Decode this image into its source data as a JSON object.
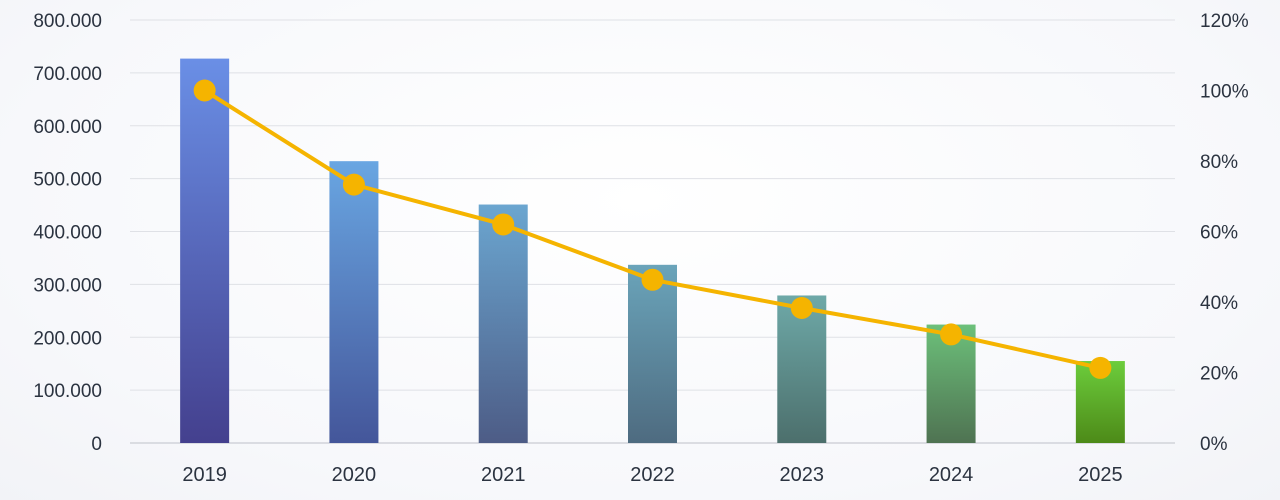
{
  "chart_data": {
    "type": "bar",
    "categories": [
      "2019",
      "2020",
      "2021",
      "2022",
      "2023",
      "2024",
      "2025"
    ],
    "series": [
      {
        "type": "bar",
        "axis": "left",
        "values": [
          727000,
          533000,
          451000,
          337000,
          279000,
          224000,
          155000
        ]
      },
      {
        "type": "line",
        "axis": "right",
        "values": [
          1.0,
          0.733,
          0.62,
          0.463,
          0.383,
          0.308,
          0.213
        ],
        "color": "#f5b400"
      }
    ],
    "left_axis": {
      "ylim": [
        0,
        800000
      ],
      "ticks": [
        "800.000",
        "700.000",
        "600.000",
        "500.000",
        "400.000",
        "300.000",
        "200.000",
        "100.000",
        "0"
      ]
    },
    "right_axis": {
      "ylim": [
        0,
        1.2
      ],
      "ticks": [
        "120%",
        "100%",
        "80%",
        "60%",
        "40%",
        "20%",
        "0%"
      ]
    },
    "bar_gradients": [
      [
        "#6a8fe6",
        "#44408e"
      ],
      [
        "#69a6e2",
        "#44569a"
      ],
      [
        "#6ba6d0",
        "#4d5c86"
      ],
      [
        "#6aa4ba",
        "#4e6b80"
      ],
      [
        "#6ea9a8",
        "#4c6f6c"
      ],
      [
        "#6cc07a",
        "#4f7352"
      ],
      [
        "#6ccd3c",
        "#4d8a18"
      ]
    ],
    "grid": true,
    "legend": "none"
  }
}
